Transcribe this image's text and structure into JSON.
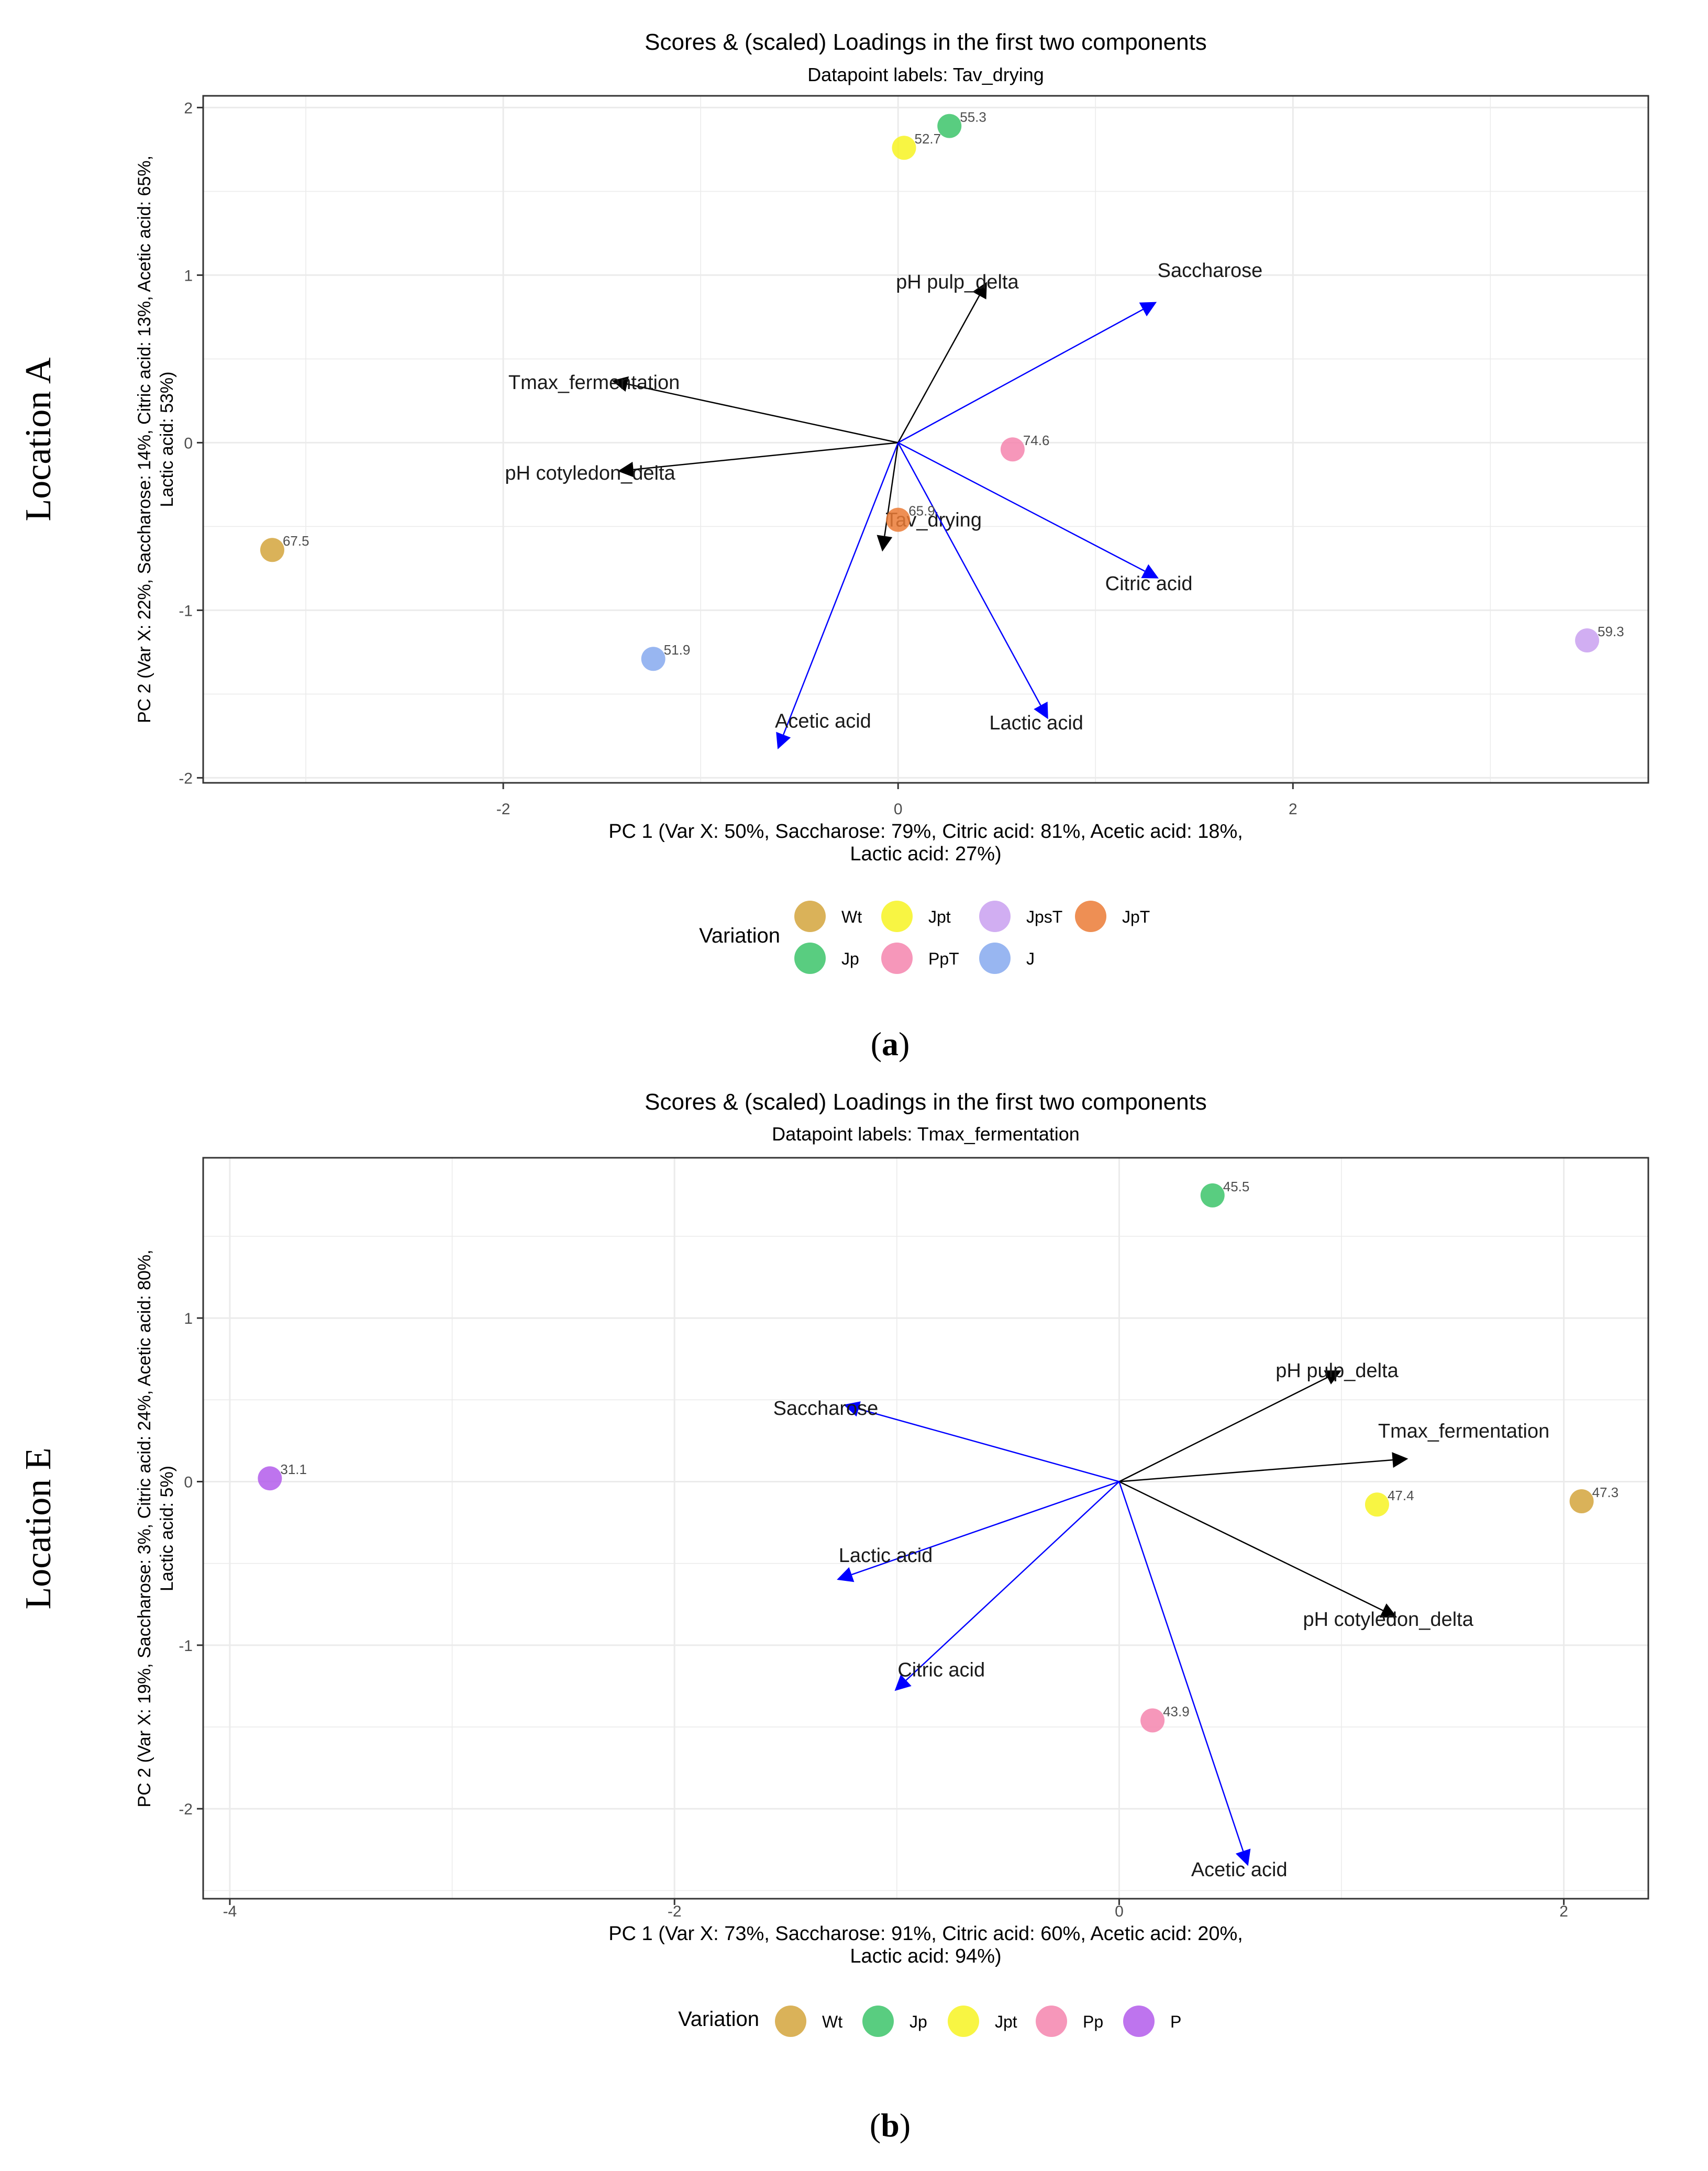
{
  "chart_data": [
    {
      "type": "scatter",
      "panel_label": "a",
      "row_label": "Location A",
      "title": "Scores & (scaled) Loadings in the first two components",
      "subtitle": "Datapoint labels: Tav_drying",
      "xlabel": "PC 1 (Var X: 50%, Saccharose: 79%, Citric acid: 81%, Acetic acid: 18%, Lactic acid: 27%)",
      "ylabel": "PC 2 (Var X: 22%, Saccharose: 14%, Citric acid: 13%, Acetic acid: 65%, Lactic acid: 53%)",
      "xlim": [
        -3.52,
        3.8
      ],
      "ylim": [
        -2.03,
        2.07
      ],
      "x_ticks": [
        -2,
        0,
        2
      ],
      "y_ticks": [
        -2,
        -1,
        0,
        1,
        2
      ],
      "x_tick_labels": [
        "-2",
        "0",
        "2"
      ],
      "y_tick_labels": [
        "-2",
        "-1",
        "0",
        "1",
        "2"
      ],
      "legend_title": "Variation",
      "legend_position": "bottom",
      "legend": [
        {
          "name": "Wt",
          "color": "#D4A43C"
        },
        {
          "name": "Jpt",
          "color": "#F7F322"
        },
        {
          "name": "JpsT",
          "color": "#C9A0F0"
        },
        {
          "name": "JpT",
          "color": "#EB7B36"
        },
        {
          "name": "Jp",
          "color": "#3CC46A"
        },
        {
          "name": "PpT",
          "color": "#F585AE"
        },
        {
          "name": "J",
          "color": "#86A9EE"
        }
      ],
      "points": [
        {
          "variation": "Jp",
          "x": 0.26,
          "y": 1.89,
          "label": "55.3",
          "color": "#3CC46A"
        },
        {
          "variation": "Jpt",
          "x": 0.03,
          "y": 1.76,
          "label": "52.7",
          "color": "#F7F322"
        },
        {
          "variation": "PpT",
          "x": 0.58,
          "y": -0.04,
          "label": "74.6",
          "color": "#F585AE"
        },
        {
          "variation": "JpT",
          "x": 0.0,
          "y": -0.46,
          "label": "65.9",
          "color": "#EB7B36"
        },
        {
          "variation": "Wt",
          "x": -3.17,
          "y": -0.64,
          "label": "67.5",
          "color": "#D4A43C"
        },
        {
          "variation": "J",
          "x": -1.24,
          "y": -1.29,
          "label": "51.9",
          "color": "#86A9EE"
        },
        {
          "variation": "JpsT",
          "x": 3.49,
          "y": -1.18,
          "label": "59.3",
          "color": "#C9A0F0"
        }
      ],
      "loadings": [
        {
          "name": "pH pulp_delta",
          "x": 0.45,
          "y": 0.96,
          "color": "#000000",
          "label_x": 0.3,
          "label_y": 0.96
        },
        {
          "name": "Saccharose",
          "x": 1.31,
          "y": 0.84,
          "color": "#0000FF",
          "label_x": 1.58,
          "label_y": 1.03
        },
        {
          "name": "Tmax_fermentation",
          "x": -1.45,
          "y": 0.37,
          "color": "#000000",
          "label_x": -1.54,
          "label_y": 0.36
        },
        {
          "name": "pH cotyledon_delta",
          "x": -1.42,
          "y": -0.17,
          "color": "#000000",
          "label_x": -1.56,
          "label_y": -0.18
        },
        {
          "name": "Tav_drying",
          "x": -0.08,
          "y": -0.65,
          "color": "#000000",
          "label_x": 0.18,
          "label_y": -0.46
        },
        {
          "name": "Citric acid",
          "x": 1.32,
          "y": -0.81,
          "color": "#0000FF",
          "label_x": 1.27,
          "label_y": -0.84
        },
        {
          "name": "Acetic acid",
          "x": -0.61,
          "y": -1.83,
          "color": "#0000FF",
          "label_x": -0.38,
          "label_y": -1.66
        },
        {
          "name": "Lactic acid",
          "x": 0.76,
          "y": -1.65,
          "color": "#0000FF",
          "label_x": 0.7,
          "label_y": -1.67
        }
      ]
    },
    {
      "type": "scatter",
      "panel_label": "b",
      "row_label": "Location E",
      "title": "Scores & (scaled) Loadings in the first two components",
      "subtitle": "Datapoint labels: Tmax_fermentation",
      "xlabel": "PC 1 (Var X: 73%, Saccharose: 91%, Citric acid: 60%, Acetic acid: 20%, Lactic acid: 94%)",
      "ylabel": "PC 2 (Var X: 19%, Saccharose: 3%, Citric acid: 24%, Acetic acid: 80%, Lactic acid: 5%)",
      "xlim": [
        -4.12,
        2.38
      ],
      "ylim": [
        -2.55,
        1.98
      ],
      "x_ticks": [
        -4,
        -2,
        0,
        2
      ],
      "y_ticks": [
        -2,
        -1,
        0,
        1
      ],
      "x_tick_labels": [
        "-4",
        "-2",
        "0",
        "2"
      ],
      "y_tick_labels": [
        "-2",
        "-1",
        "0",
        "1"
      ],
      "legend_title": "Variation",
      "legend_position": "bottom",
      "legend": [
        {
          "name": "Wt",
          "color": "#D4A43C"
        },
        {
          "name": "Jp",
          "color": "#3CC46A"
        },
        {
          "name": "Jpt",
          "color": "#F7F322"
        },
        {
          "name": "Pp",
          "color": "#F585AE"
        },
        {
          "name": "P",
          "color": "#B35CEB"
        }
      ],
      "points": [
        {
          "variation": "Jp",
          "x": 0.42,
          "y": 1.75,
          "label": "45.5",
          "color": "#3CC46A"
        },
        {
          "variation": "P",
          "x": -3.82,
          "y": 0.02,
          "label": "31.1",
          "color": "#B35CEB"
        },
        {
          "variation": "Jpt",
          "x": 1.16,
          "y": -0.14,
          "label": "47.4",
          "color": "#F7F322"
        },
        {
          "variation": "Wt",
          "x": 2.08,
          "y": -0.12,
          "label": "47.3",
          "color": "#D4A43C"
        },
        {
          "variation": "Pp",
          "x": 0.15,
          "y": -1.46,
          "label": "43.9",
          "color": "#F585AE"
        }
      ],
      "loadings": [
        {
          "name": "pH pulp_delta",
          "x": 1.0,
          "y": 0.68,
          "color": "#000000",
          "label_x": 0.98,
          "label_y": 0.68
        },
        {
          "name": "Tmax_fermentation",
          "x": 1.3,
          "y": 0.14,
          "color": "#000000",
          "label_x": 1.55,
          "label_y": 0.31
        },
        {
          "name": "Saccharose",
          "x": -1.24,
          "y": 0.47,
          "color": "#0000FF",
          "label_x": -1.32,
          "label_y": 0.45
        },
        {
          "name": "Lactic acid",
          "x": -1.27,
          "y": -0.6,
          "color": "#0000FF",
          "label_x": -1.05,
          "label_y": -0.45
        },
        {
          "name": "pH cotyledon_delta",
          "x": 1.25,
          "y": -0.83,
          "color": "#000000",
          "label_x": 1.21,
          "label_y": -0.84
        },
        {
          "name": "Citric acid",
          "x": -1.01,
          "y": -1.28,
          "color": "#0000FF",
          "label_x": -0.8,
          "label_y": -1.15
        },
        {
          "name": "Acetic acid",
          "x": 0.58,
          "y": -2.35,
          "color": "#0000FF",
          "label_x": 0.54,
          "label_y": -2.37
        }
      ]
    }
  ]
}
